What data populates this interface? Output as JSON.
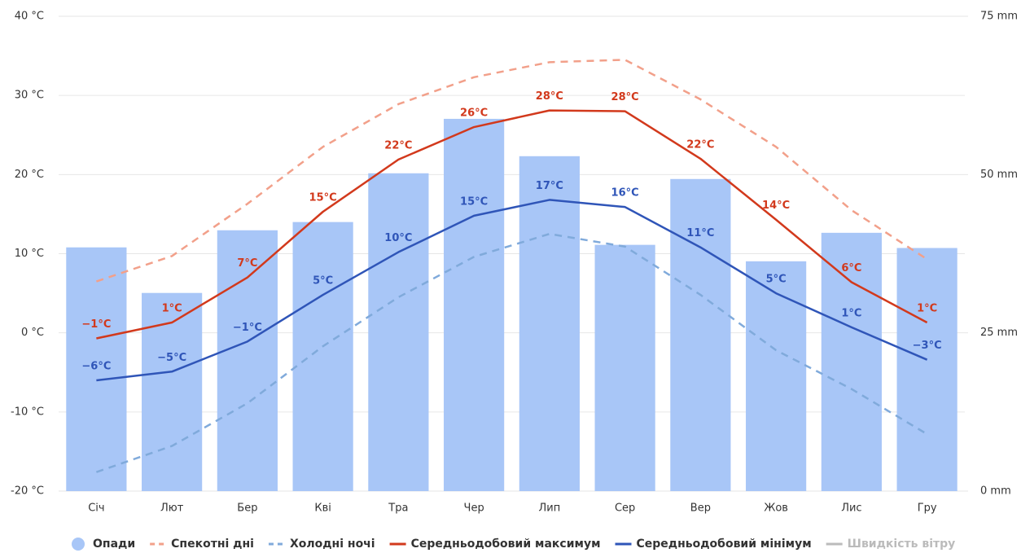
{
  "chart_data": {
    "type": "bar",
    "categories": [
      "Січ",
      "Лют",
      "Бер",
      "Кві",
      "Тра",
      "Чер",
      "Лип",
      "Сер",
      "Вер",
      "Жов",
      "Лис",
      "Гру"
    ],
    "ylim": [
      -20,
      40
    ],
    "yticks": [
      {
        "value": -20,
        "label": "-20 °C"
      },
      {
        "value": -10,
        "label": "-10 °C"
      },
      {
        "value": 0,
        "label": "0 °C"
      },
      {
        "value": 10,
        "label": "10 °C"
      },
      {
        "value": 20,
        "label": "20 °C"
      },
      {
        "value": 30,
        "label": "30 °C"
      },
      {
        "value": 40,
        "label": "40 °C"
      }
    ],
    "y2lim": [
      0,
      75
    ],
    "y2ticks": [
      {
        "value": 0,
        "label": "0 mm"
      },
      {
        "value": 25,
        "label": "25 mm"
      },
      {
        "value": 50,
        "label": "50 mm"
      },
      {
        "value": 75,
        "label": "75 mm"
      }
    ],
    "grid": true,
    "series": [
      {
        "name": "Опади",
        "type": "bar",
        "axis": "y2",
        "color": "#a8c6f7",
        "values": [
          38.5,
          31.3,
          41.2,
          42.5,
          50.2,
          58.8,
          52.9,
          38.9,
          49.3,
          36.3,
          40.8,
          38.4
        ]
      },
      {
        "name": "Спекотні дні",
        "type": "line",
        "dashed": true,
        "color": "#f2a08a",
        "values": [
          6.5,
          9.7,
          16.3,
          23.5,
          28.9,
          32.3,
          34.2,
          34.5,
          29.5,
          23.5,
          15.5,
          9.3
        ]
      },
      {
        "name": "Холодні ночі",
        "type": "line",
        "dashed": true,
        "color": "#80aadb",
        "values": [
          -17.6,
          -14.3,
          -8.9,
          -1.7,
          4.5,
          9.6,
          12.5,
          10.9,
          4.8,
          -2.2,
          -7.1,
          -12.8
        ]
      },
      {
        "name": "Середньодобовий максимум",
        "type": "line",
        "dashed": false,
        "color": "#d2391c",
        "values": [
          -0.7,
          1.3,
          7.0,
          15.3,
          21.9,
          26.0,
          28.1,
          28.0,
          22.0,
          14.3,
          6.4,
          1.3
        ],
        "value_labels": [
          "−1°C",
          "1°C",
          "7°C",
          "15°C",
          "22°C",
          "26°C",
          "28°C",
          "28°C",
          "22°C",
          "14°C",
          "6°C",
          "1°C"
        ]
      },
      {
        "name": "Середньодобовий мінімум",
        "type": "line",
        "dashed": false,
        "color": "#2f55b8",
        "values": [
          -6.0,
          -4.9,
          -1.1,
          4.8,
          10.2,
          14.8,
          16.8,
          15.9,
          10.8,
          5.0,
          0.7,
          -3.4
        ],
        "value_labels": [
          "−6°C",
          "−5°C",
          "−1°C",
          "5°C",
          "10°C",
          "15°C",
          "17°C",
          "16°C",
          "11°C",
          "5°C",
          "1°C",
          "−3°C"
        ]
      }
    ],
    "hidden_series": [
      {
        "name": "Швидкість вітру",
        "color": "#bbbbbb"
      }
    ]
  }
}
